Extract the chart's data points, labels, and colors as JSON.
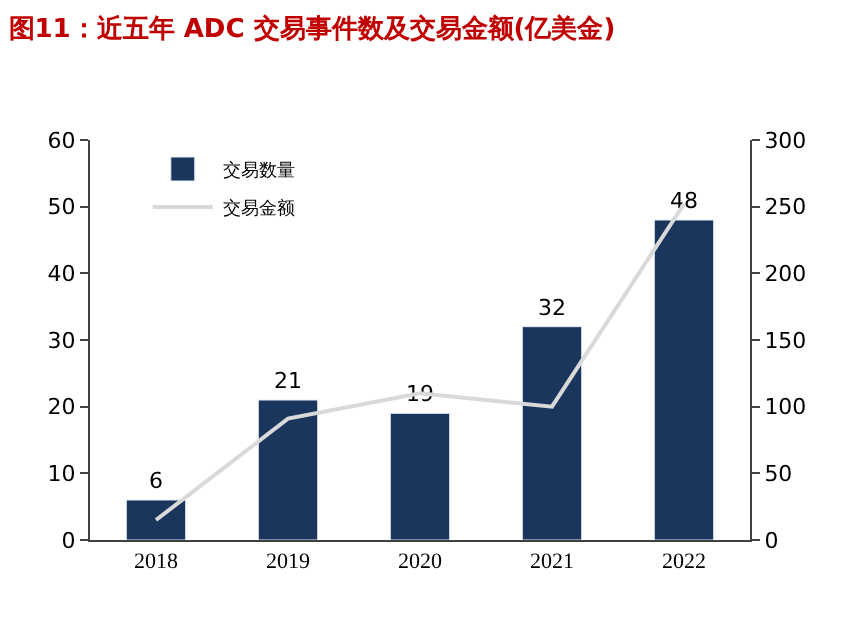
{
  "chart_data": {
    "type": "bar",
    "title": "图11：近五年 ADC 交易事件数及交易金额(亿美金)",
    "categories": [
      "2018",
      "2019",
      "2020",
      "2021",
      "2022"
    ],
    "series": [
      {
        "name": "交易数量",
        "color": "#1b365d",
        "values": [
          6,
          21,
          19,
          32,
          48
        ],
        "value_labels": [
          "6",
          "21",
          "19",
          "32",
          "48"
        ]
      },
      {
        "name": "交易金额",
        "type": "line",
        "axis": "y2",
        "color": "#d9d9d9",
        "values": [
          15,
          91,
          110,
          100,
          252
        ]
      }
    ],
    "ylim": [
      0,
      60
    ],
    "yticks": [
      0,
      10,
      20,
      30,
      40,
      50,
      60
    ],
    "y2lim": [
      0,
      300
    ],
    "y2ticks": [
      0,
      50,
      100,
      150,
      200,
      250,
      300
    ],
    "legend": "top left",
    "marker": "none"
  }
}
